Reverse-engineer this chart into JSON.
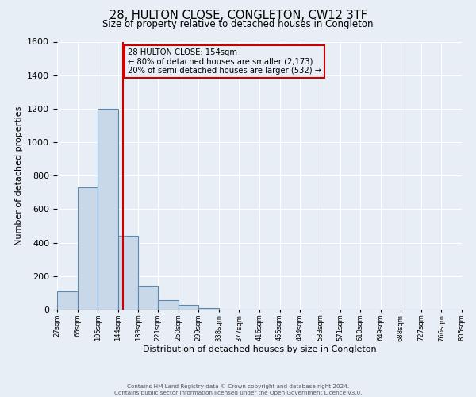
{
  "title": "28, HULTON CLOSE, CONGLETON, CW12 3TF",
  "subtitle": "Size of property relative to detached houses in Congleton",
  "xlabel": "Distribution of detached houses by size in Congleton",
  "ylabel": "Number of detached properties",
  "bar_values": [
    110,
    730,
    1200,
    440,
    140,
    55,
    30,
    10,
    0,
    0,
    0,
    0,
    0,
    0,
    0,
    0,
    0,
    0,
    0,
    0
  ],
  "bin_edges": [
    27,
    66,
    105,
    144,
    183,
    221,
    260,
    299,
    338,
    377,
    416,
    455,
    494,
    533,
    571,
    610,
    649,
    688,
    727,
    766,
    805
  ],
  "tick_labels": [
    "27sqm",
    "66sqm",
    "105sqm",
    "144sqm",
    "183sqm",
    "221sqm",
    "260sqm",
    "299sqm",
    "338sqm",
    "377sqm",
    "416sqm",
    "455sqm",
    "494sqm",
    "533sqm",
    "571sqm",
    "610sqm",
    "649sqm",
    "688sqm",
    "727sqm",
    "766sqm",
    "805sqm"
  ],
  "bar_color": "#c8d8e8",
  "bar_edge_color": "#5a8ab0",
  "ylim": [
    0,
    1600
  ],
  "yticks": [
    0,
    200,
    400,
    600,
    800,
    1000,
    1200,
    1400,
    1600
  ],
  "vline_x": 154,
  "vline_color": "#cc0000",
  "annotation_text_line1": "28 HULTON CLOSE: 154sqm",
  "annotation_text_line2": "← 80% of detached houses are smaller (2,173)",
  "annotation_text_line3": "20% of semi-detached houses are larger (532) →",
  "annotation_box_color": "#cc0000",
  "bg_color": "#e8eef5",
  "grid_color": "#ffffff",
  "footer_line1": "Contains HM Land Registry data © Crown copyright and database right 2024.",
  "footer_line2": "Contains public sector information licensed under the Open Government Licence v3.0."
}
